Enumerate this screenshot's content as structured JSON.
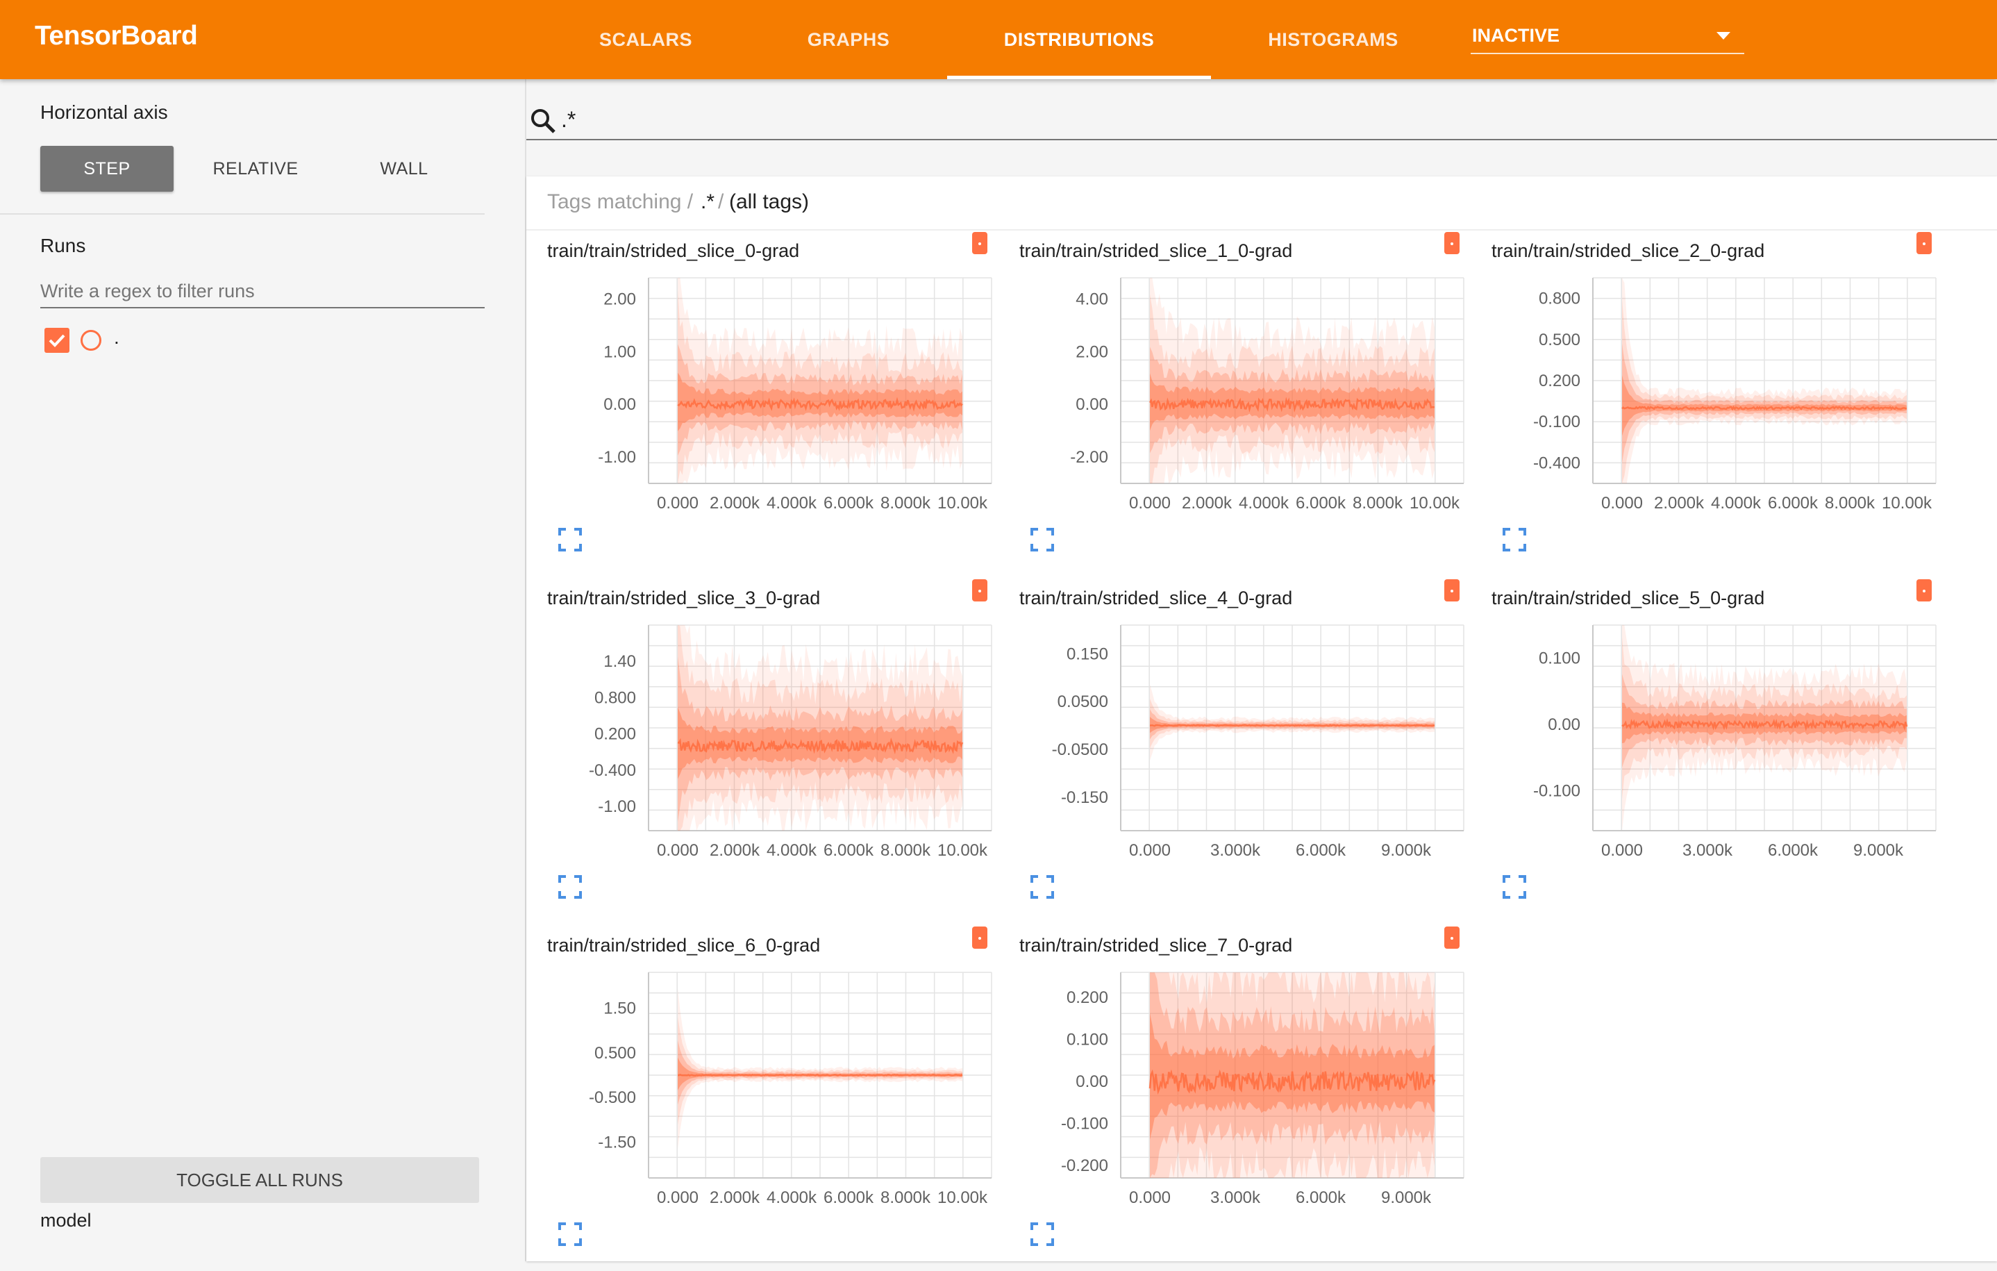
{
  "header": {
    "brand": "TensorBoard",
    "tabs": [
      {
        "label": "SCALARS",
        "active": false
      },
      {
        "label": "GRAPHS",
        "active": false
      },
      {
        "label": "DISTRIBUTIONS",
        "active": true
      },
      {
        "label": "HISTOGRAMS",
        "active": false
      }
    ],
    "inactive_select": "INACTIVE"
  },
  "sidebar": {
    "horizontal_axis_label": "Horizontal axis",
    "axis_buttons": [
      {
        "label": "STEP",
        "active": true
      },
      {
        "label": "RELATIVE",
        "active": false
      },
      {
        "label": "WALL",
        "active": false
      }
    ],
    "runs_label": "Runs",
    "run_filter_placeholder": "Write a regex to filter runs",
    "run_name": ".",
    "toggle_all_runs": "TOGGLE ALL RUNS",
    "model_label": "model"
  },
  "search": {
    "query": ".*"
  },
  "tags_header": {
    "prefix": "Tags matching /",
    "regex": ".*",
    "suffix": "/ (all tags)"
  },
  "colors": {
    "accent": "#f57c00",
    "series": "#ff7043",
    "link_icon": "#4a90e2"
  },
  "chart_data": [
    {
      "type": "area",
      "title": "train/train/strided_slice_0-grad",
      "x_ticks": [
        "0.000",
        "2.000k",
        "4.000k",
        "6.000k",
        "8.000k",
        "10.00k"
      ],
      "x_range": [
        0,
        10000
      ],
      "y_ticks": [
        "2.00",
        "1.00",
        "0.00",
        "-1.00"
      ],
      "y_range": [
        -1.5,
        2.4
      ],
      "spread": 0.4,
      "initial_spike": 1.0
    },
    {
      "type": "area",
      "title": "train/train/strided_slice_1_0-grad",
      "x_ticks": [
        "0.000",
        "2.000k",
        "4.000k",
        "6.000k",
        "8.000k",
        "10.00k"
      ],
      "x_range": [
        0,
        10000
      ],
      "y_ticks": [
        "4.00",
        "2.00",
        "0.00",
        "-2.00"
      ],
      "y_range": [
        -3.0,
        4.8
      ],
      "spread": 0.9,
      "initial_spike": 1.8
    },
    {
      "type": "area",
      "title": "train/train/strided_slice_2_0-grad",
      "x_ticks": [
        "0.000",
        "2.000k",
        "4.000k",
        "6.000k",
        "8.000k",
        "10.00k"
      ],
      "x_range": [
        0,
        10000
      ],
      "y_ticks": [
        "0.800",
        "0.500",
        "0.200",
        "-0.100",
        "-0.400"
      ],
      "y_range": [
        -0.55,
        0.95
      ],
      "spread": 0.04,
      "initial_spike": 0.6
    },
    {
      "type": "area",
      "title": "train/train/strided_slice_3_0-grad",
      "x_ticks": [
        "0.000",
        "2.000k",
        "4.000k",
        "6.000k",
        "8.000k",
        "10.00k"
      ],
      "x_range": [
        0,
        10000
      ],
      "y_ticks": [
        "1.40",
        "0.800",
        "0.200",
        "-0.400",
        "-1.00"
      ],
      "y_range": [
        -1.4,
        2.0
      ],
      "spread": 0.45,
      "initial_spike": 1.2
    },
    {
      "type": "area",
      "title": "train/train/strided_slice_4_0-grad",
      "x_ticks": [
        "0.000",
        "3.000k",
        "6.000k",
        "9.000k"
      ],
      "x_range": [
        0,
        10000
      ],
      "y_ticks": [
        "0.150",
        "0.0500",
        "-0.0500",
        "-0.150"
      ],
      "y_range": [
        -0.22,
        0.21
      ],
      "spread": 0.005,
      "initial_spike": 0.04
    },
    {
      "type": "area",
      "title": "train/train/strided_slice_5_0-grad",
      "x_ticks": [
        "0.000",
        "3.000k",
        "6.000k",
        "9.000k"
      ],
      "x_range": [
        0,
        10000
      ],
      "y_ticks": [
        "0.100",
        "0.00",
        "-0.100"
      ],
      "y_range": [
        -0.16,
        0.15
      ],
      "spread": 0.025,
      "initial_spike": 0.06
    },
    {
      "type": "area",
      "title": "train/train/strided_slice_6_0-grad",
      "x_ticks": [
        "0.000",
        "2.000k",
        "4.000k",
        "6.000k",
        "8.000k",
        "10.00k"
      ],
      "x_range": [
        0,
        10000
      ],
      "y_ticks": [
        "1.50",
        "0.500",
        "-0.500",
        "-1.50"
      ],
      "y_range": [
        -2.3,
        2.3
      ],
      "spread": 0.05,
      "initial_spike": 1.0
    },
    {
      "type": "area",
      "title": "train/train/strided_slice_7_0-grad",
      "x_ticks": [
        "0.000",
        "3.000k",
        "6.000k",
        "9.000k"
      ],
      "x_range": [
        0,
        10000
      ],
      "y_ticks": [
        "0.200",
        "0.100",
        "0.00",
        "-0.100",
        "-0.200"
      ],
      "y_range": [
        -0.23,
        0.26
      ],
      "spread": 0.12,
      "initial_spike": 0.25
    }
  ]
}
